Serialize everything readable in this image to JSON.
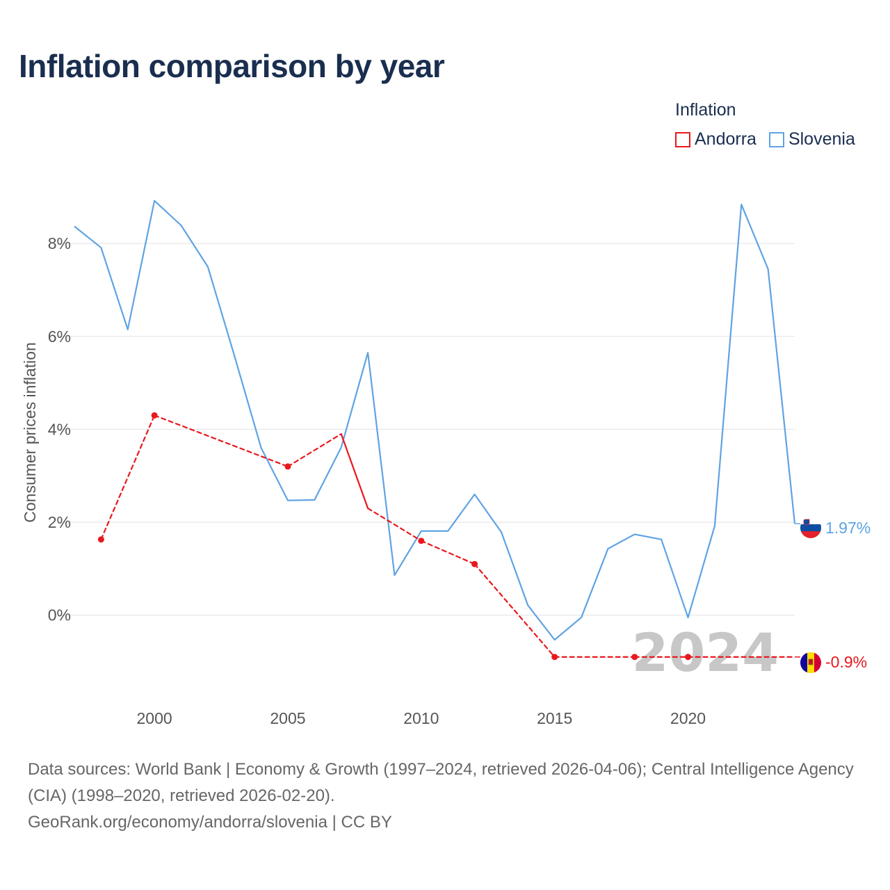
{
  "title": "Inflation comparison by year",
  "legend": {
    "title": "Inflation",
    "items": [
      {
        "label": "Andorra",
        "color": "#e8181d"
      },
      {
        "label": "Slovenia",
        "color": "#5fa3e3"
      }
    ]
  },
  "chart_data": {
    "type": "line",
    "title": "Inflation comparison by year",
    "ylabel": "Consumer prices inflation",
    "xlabel": "",
    "xlim": [
      1997,
      2024
    ],
    "ylim": [
      -1.8,
      9.2
    ],
    "x_ticks": [
      2000,
      2005,
      2010,
      2015,
      2020
    ],
    "x_tick_labels": [
      "2000",
      "2005",
      "2010",
      "2015",
      "2020"
    ],
    "y_ticks": [
      0,
      2,
      4,
      6,
      8
    ],
    "y_tick_labels": [
      "0%",
      "2%",
      "4%",
      "6%",
      "8%"
    ],
    "current_year_label": "2024",
    "series": [
      {
        "name": "Slovenia",
        "color": "#5fa3e3",
        "end_label": "1.97%",
        "flag": "Slovenia flag",
        "points": [
          [
            1997,
            8.37
          ],
          [
            1998,
            7.91
          ],
          [
            1999,
            6.15
          ],
          [
            2000,
            8.92
          ],
          [
            2001,
            8.39
          ],
          [
            2002,
            7.5
          ],
          [
            2003,
            5.58
          ],
          [
            2004,
            3.6
          ],
          [
            2005,
            2.47
          ],
          [
            2006,
            2.48
          ],
          [
            2007,
            3.61
          ],
          [
            2008,
            5.65
          ],
          [
            2009,
            0.86
          ],
          [
            2010,
            1.81
          ],
          [
            2011,
            1.81
          ],
          [
            2012,
            2.6
          ],
          [
            2013,
            1.79
          ],
          [
            2014,
            0.21
          ],
          [
            2015,
            -0.53
          ],
          [
            2016,
            -0.05
          ],
          [
            2017,
            1.43
          ],
          [
            2018,
            1.74
          ],
          [
            2019,
            1.63
          ],
          [
            2020,
            -0.05
          ],
          [
            2021,
            1.92
          ],
          [
            2022,
            8.84
          ],
          [
            2023,
            7.45
          ],
          [
            2024,
            1.97
          ]
        ]
      },
      {
        "name": "Andorra",
        "color": "#e8181d",
        "end_label": "-0.9%",
        "flag": "Andorra flag",
        "points": [
          [
            1998,
            1.63
          ],
          [
            2000,
            4.3
          ],
          [
            2005,
            3.2
          ],
          [
            2007,
            3.9
          ],
          [
            2008,
            2.3
          ],
          [
            2010,
            1.6
          ],
          [
            2012,
            1.1
          ],
          [
            2015,
            -0.9
          ],
          [
            2018,
            -0.9
          ],
          [
            2020,
            -0.9
          ],
          [
            2024,
            -0.9
          ]
        ]
      }
    ]
  },
  "footer": {
    "sources": "Data sources: World Bank | Economy & Growth (1997–2024, retrieved 2026-04-06); Central Intelligence Agency (CIA) (1998–2020, retrieved 2026-02-20).",
    "credit": "GeoRank.org/economy/andorra/slovenia | CC BY"
  }
}
